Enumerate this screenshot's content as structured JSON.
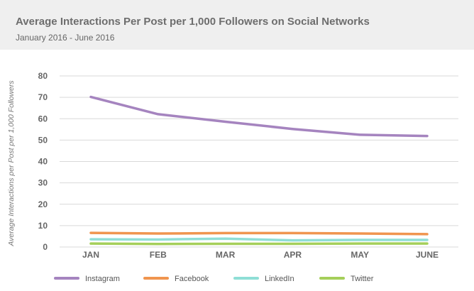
{
  "chart_data": {
    "type": "line",
    "title": "Average Interactions Per Post per 1,000 Followers on Social Networks",
    "subtitle": "January 2016 - June 2016",
    "xlabel": "",
    "ylabel": "Average Interactions per Post per 1,000 Followers",
    "categories": [
      "JAN",
      "FEB",
      "MAR",
      "APR",
      "MAY",
      "JUNE"
    ],
    "ylim": [
      0,
      80
    ],
    "yticks": [
      0,
      10,
      20,
      30,
      40,
      50,
      60,
      70,
      80
    ],
    "grid": true,
    "legend_position": "bottom",
    "series": [
      {
        "name": "Instagram",
        "color": "#a584bf",
        "values": [
          70.2,
          62.1,
          58.6,
          55.2,
          52.5,
          51.9
        ]
      },
      {
        "name": "Facebook",
        "color": "#f0954f",
        "values": [
          6.6,
          6.3,
          6.5,
          6.5,
          6.3,
          6.0
        ]
      },
      {
        "name": "LinkedIn",
        "color": "#8fded6",
        "values": [
          3.6,
          3.5,
          3.9,
          3.1,
          3.3,
          3.3
        ]
      },
      {
        "name": "Twitter",
        "color": "#a5cf5a",
        "values": [
          1.6,
          1.4,
          1.5,
          1.5,
          1.6,
          1.6
        ]
      }
    ]
  }
}
